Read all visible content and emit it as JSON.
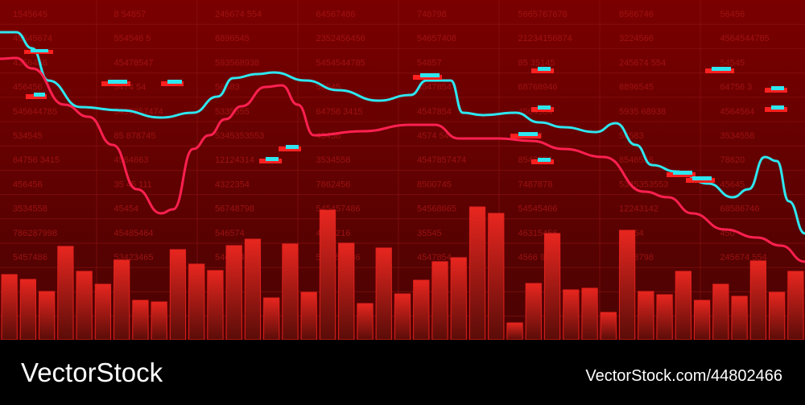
{
  "background_numbers": [
    [
      "1545645",
      "8 54857",
      "245674 554",
      "64567486",
      "748798",
      "5665767678",
      "8586746",
      "56456"
    ],
    [
      "45645674",
      "554546 5",
      "8896545",
      "2352456456",
      "54657408",
      "21234156874",
      "3224566",
      "4564544785"
    ],
    [
      "4356456",
      "45478547",
      "593568938",
      "5454544785",
      "54857",
      "85 35145",
      "245674 554",
      "54545"
    ],
    [
      "456456",
      "5474 54",
      "56583",
      "56545",
      "4547854",
      "68768946",
      "8896545",
      "64756 3"
    ],
    [
      "545644785",
      "5457857474",
      "5335355",
      "64756 3415",
      "4547854",
      "4564564",
      "5935 68938",
      "4564564"
    ],
    [
      "534545",
      "85 878745",
      "5345353553",
      "45456",
      "4574 54",
      "56583",
      "56583",
      "3534558"
    ],
    [
      "64756 3415",
      "4564663",
      "12124314",
      "3534558",
      "4547857474",
      "8546556",
      "8546556",
      "78620"
    ],
    [
      "456456",
      "35 45 111",
      "4322354",
      "7862456",
      "8500745",
      "7487878",
      "5345353553",
      "45645"
    ],
    [
      "3534558",
      "45454",
      "56748798",
      "545457486",
      "54568665",
      "54545466",
      "12243142",
      "68586746"
    ],
    [
      "786287998",
      "45485464",
      "546574",
      "4121216",
      "35545",
      "46315456",
      "42354",
      "450"
    ],
    [
      "5457486",
      "53423465",
      "546574",
      "545457486",
      "4547854",
      "4566 9999",
      "6748798",
      "245674 554"
    ]
  ],
  "chart_data": {
    "type": "bar-line",
    "values": [
      81,
      75,
      60,
      116,
      85,
      69,
      99,
      49,
      47,
      112,
      94,
      86,
      117,
      125,
      52,
      119,
      59,
      161,
      120,
      45,
      114,
      57,
      74,
      97,
      102,
      165,
      157,
      21,
      70,
      132,
      62,
      64,
      34,
      136,
      60,
      56,
      85,
      49,
      69,
      54,
      98,
      59,
      85
    ],
    "color": "#e0201c",
    "ylim": [
      0,
      422
    ],
    "xlim": [
      0,
      1000
    ],
    "series": [
      {
        "color": "#2ee6f0",
        "x": [
          0,
          20,
          40,
          60,
          100,
          150,
          200,
          240,
          270,
          290,
          320,
          340,
          380,
          420,
          470,
          510,
          530,
          560,
          575,
          600,
          640,
          670,
          700,
          740,
          765,
          790,
          810,
          840,
          880,
          910,
          930,
          950,
          965,
          980,
          1000
        ],
        "values": [
          382,
          382,
          362,
          322,
          289,
          285,
          276,
          282,
          302,
          325,
          330,
          332,
          322,
          310,
          297,
          304,
          322,
          322,
          282,
          279,
          282,
          270,
          264,
          258,
          269,
          242,
          217,
          209,
          194,
          177,
          187,
          227,
          222,
          172,
          132
        ]
      },
      {
        "color": "#ff2050",
        "x": [
          0,
          20,
          40,
          80,
          110,
          140,
          170,
          200,
          215,
          240,
          260,
          280,
          300,
          330,
          350,
          370,
          390,
          450,
          510,
          540,
          570,
          620,
          660,
          700,
          750,
          800,
          830,
          860,
          900,
          940,
          970,
          1000
        ],
        "values": [
          349,
          350,
          337,
          292,
          277,
          242,
          187,
          157,
          162,
          237,
          254,
          274,
          290,
          314,
          316,
          292,
          254,
          259,
          267,
          267,
          250,
          250,
          247,
          237,
          227,
          184,
          177,
          157,
          137,
          127,
          117,
          97
        ]
      }
    ]
  },
  "watermark": {
    "brand": "VectorStock",
    "id": "VectorStock.com/44802466"
  }
}
